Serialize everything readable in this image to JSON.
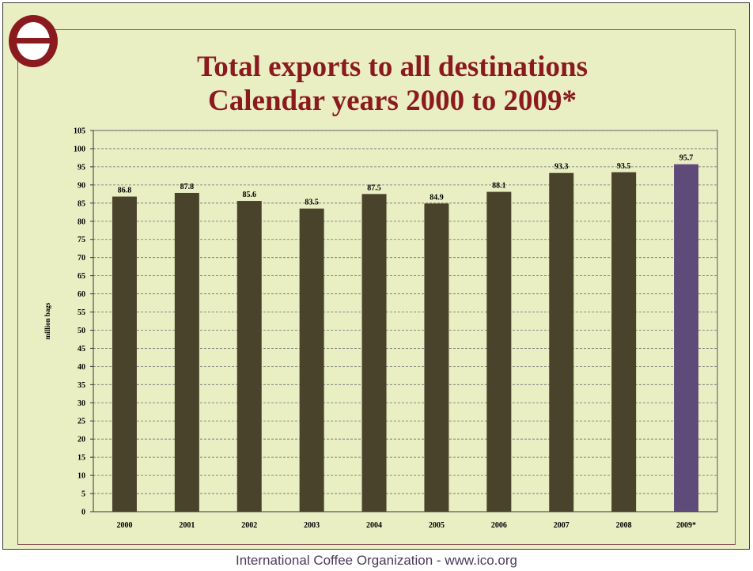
{
  "header": {
    "title_line1": "Total exports to all destinations",
    "title_line2": "Calendar years 2000 to 2009*"
  },
  "footer": {
    "text": "International Coffee Organization  -  www.ico.org"
  },
  "logo": {
    "icon": "ico-logo-icon",
    "ring_color": "#8b1a1f"
  },
  "colors": {
    "bar": "#4a432c",
    "highlight_bar": "#5f4b79",
    "background": "#e9efc3",
    "title": "#8b1a1f"
  },
  "chart_data": {
    "type": "bar",
    "categories": [
      "2000",
      "2001",
      "2002",
      "2003",
      "2004",
      "2005",
      "2006",
      "2007",
      "2008",
      "2009*"
    ],
    "values": [
      86.8,
      87.8,
      85.6,
      83.5,
      87.5,
      84.9,
      88.1,
      93.3,
      93.5,
      95.7
    ],
    "value_labels": [
      "86.8",
      "87.8",
      "85.6",
      "83.5",
      "87.5",
      "84.9",
      "88.1",
      "93.3",
      "93.5",
      "95.7"
    ],
    "highlight_index": 9,
    "title": "Total exports to all destinations Calendar years 2000 to 2009*",
    "xlabel": "",
    "ylabel": "million bags",
    "ylim": [
      0,
      105
    ],
    "ytick_step": 5,
    "yticks": [
      "0",
      "5",
      "10",
      "15",
      "20",
      "25",
      "30",
      "35",
      "40",
      "45",
      "50",
      "55",
      "60",
      "65",
      "70",
      "75",
      "80",
      "85",
      "90",
      "95",
      "100",
      "105"
    ],
    "grid": true,
    "legend": "none"
  }
}
